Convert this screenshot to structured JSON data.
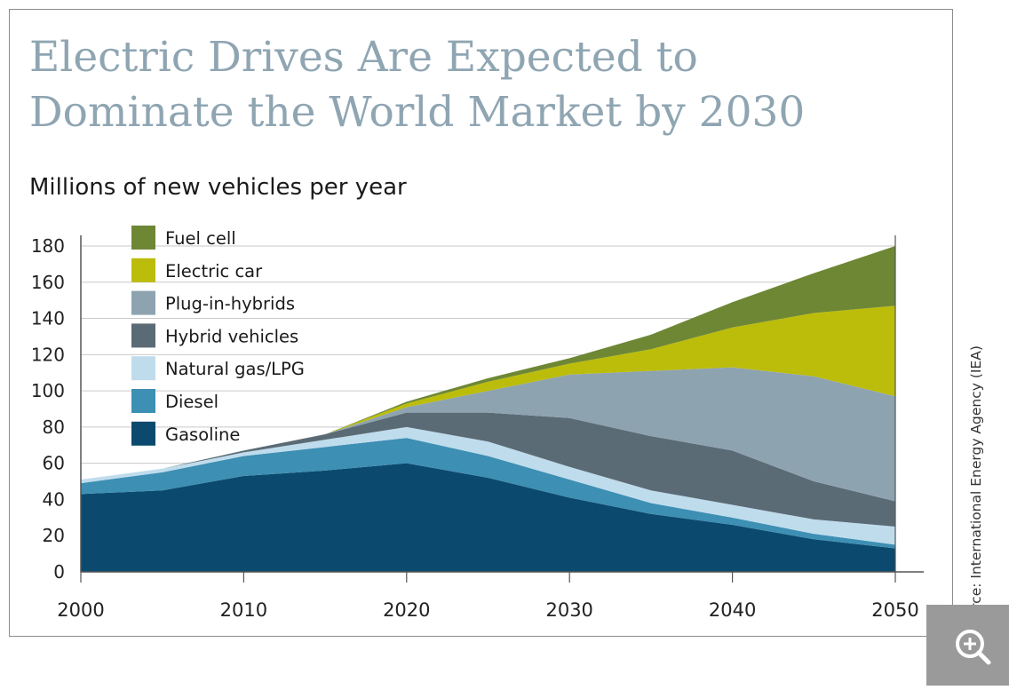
{
  "page": {
    "title_lines": [
      "Electric Drives Are Expected to",
      "Dominate the World Market by 2030"
    ],
    "source": "Source: International Energy Agency (IEA)"
  },
  "chart_data": {
    "type": "area",
    "stacked": true,
    "title": "Electric Drives Are Expected to Dominate the World Market by 2030",
    "subtitle": "Millions of new vehicles per year",
    "xlabel": "",
    "ylabel": "",
    "x": [
      2000,
      2005,
      2010,
      2015,
      2020,
      2025,
      2030,
      2035,
      2040,
      2045,
      2050
    ],
    "xlim": [
      2000,
      2050
    ],
    "ylim": [
      0,
      180
    ],
    "xticks": [
      2000,
      2010,
      2020,
      2030,
      2040,
      2050
    ],
    "yticks": [
      0,
      20,
      40,
      60,
      80,
      100,
      120,
      140,
      160,
      180
    ],
    "grid": "horizontal",
    "legend_position": "top-left",
    "series": [
      {
        "name": "Gasoline",
        "color": "#0b4a6e",
        "values": [
          43,
          45,
          53,
          56,
          60,
          52,
          41,
          32,
          26,
          18,
          13
        ]
      },
      {
        "name": "Diesel",
        "color": "#3d8fb3",
        "values": [
          6,
          10,
          11,
          13,
          14,
          12,
          10,
          6,
          4,
          3,
          2
        ]
      },
      {
        "name": "Natural gas/LPG",
        "color": "#bfdced",
        "values": [
          2,
          2,
          2,
          4,
          6,
          8,
          7,
          7,
          7,
          8,
          10
        ]
      },
      {
        "name": "Hybrid vehicles",
        "color": "#5b6b76",
        "values": [
          0,
          0,
          1,
          3,
          8,
          16,
          27,
          30,
          30,
          21,
          14
        ]
      },
      {
        "name": "Plug-in-hybrids",
        "color": "#8ea3b0",
        "values": [
          0,
          0,
          0,
          0,
          3,
          12,
          24,
          36,
          46,
          58,
          58
        ]
      },
      {
        "name": "Electric car",
        "color": "#bcbd0b",
        "values": [
          0,
          0,
          0,
          0,
          2,
          5,
          6,
          12,
          22,
          35,
          50
        ]
      },
      {
        "name": "Fuel cell",
        "color": "#6e8735",
        "values": [
          0,
          0,
          0,
          0,
          1,
          2,
          3,
          8,
          14,
          22,
          33
        ]
      }
    ]
  }
}
